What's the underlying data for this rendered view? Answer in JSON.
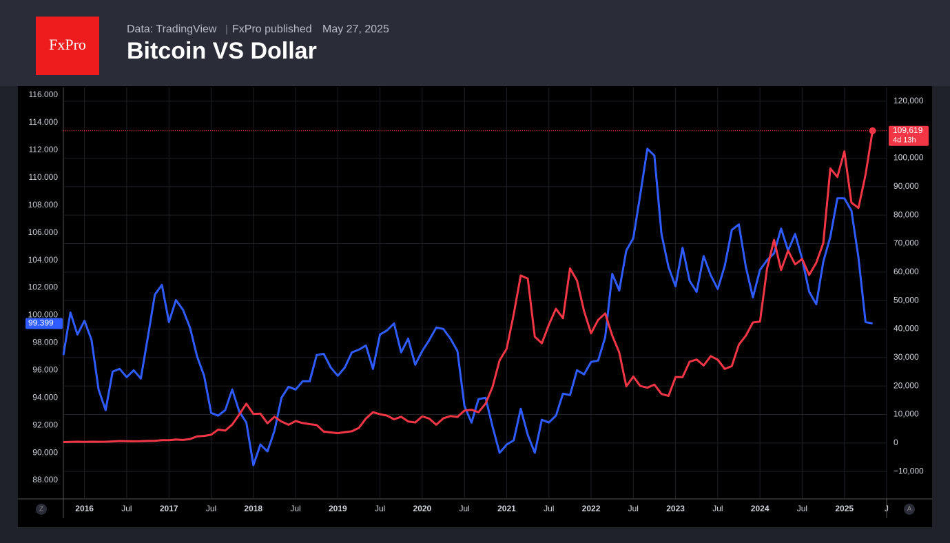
{
  "header": {
    "source": "Data: TradingView",
    "publisher": "FxPro published",
    "date": "May 27, 2025",
    "logo": "FxPro"
  },
  "axis_buttons": {
    "left": "Z",
    "right": "A"
  },
  "chart_data": {
    "type": "line",
    "title": "Bitcoin VS Dollar",
    "grid": true,
    "x": [
      "2015-10",
      "2015-11",
      "2015-12",
      "2016-01",
      "2016-02",
      "2016-03",
      "2016-04",
      "2016-05",
      "2016-06",
      "2016-07",
      "2016-08",
      "2016-09",
      "2016-10",
      "2016-11",
      "2016-12",
      "2017-01",
      "2017-02",
      "2017-03",
      "2017-04",
      "2017-05",
      "2017-06",
      "2017-07",
      "2017-08",
      "2017-09",
      "2017-10",
      "2017-11",
      "2017-12",
      "2018-01",
      "2018-02",
      "2018-03",
      "2018-04",
      "2018-05",
      "2018-06",
      "2018-07",
      "2018-08",
      "2018-09",
      "2018-10",
      "2018-11",
      "2018-12",
      "2019-01",
      "2019-02",
      "2019-03",
      "2019-04",
      "2019-05",
      "2019-06",
      "2019-07",
      "2019-08",
      "2019-09",
      "2019-10",
      "2019-11",
      "2019-12",
      "2020-01",
      "2020-02",
      "2020-03",
      "2020-04",
      "2020-05",
      "2020-06",
      "2020-07",
      "2020-08",
      "2020-09",
      "2020-10",
      "2020-11",
      "2020-12",
      "2021-01",
      "2021-02",
      "2021-03",
      "2021-04",
      "2021-05",
      "2021-06",
      "2021-07",
      "2021-08",
      "2021-09",
      "2021-10",
      "2021-11",
      "2021-12",
      "2022-01",
      "2022-02",
      "2022-03",
      "2022-04",
      "2022-05",
      "2022-06",
      "2022-07",
      "2022-08",
      "2022-09",
      "2022-10",
      "2022-11",
      "2022-12",
      "2023-01",
      "2023-02",
      "2023-03",
      "2023-04",
      "2023-05",
      "2023-06",
      "2023-07",
      "2023-08",
      "2023-09",
      "2023-10",
      "2023-11",
      "2023-12",
      "2024-01",
      "2024-02",
      "2024-03",
      "2024-04",
      "2024-05",
      "2024-06",
      "2024-07",
      "2024-08",
      "2024-09",
      "2024-10",
      "2024-11",
      "2024-12",
      "2025-01",
      "2025-02",
      "2025-03",
      "2025-04",
      "2025-05"
    ],
    "xlim": [
      "2015-10",
      "2025-07"
    ],
    "xticks": [
      {
        "value": "2016-01",
        "label": "2016"
      },
      {
        "value": "2016-07",
        "label": "Jul"
      },
      {
        "value": "2017-01",
        "label": "2017"
      },
      {
        "value": "2017-07",
        "label": "Jul"
      },
      {
        "value": "2018-01",
        "label": "2018"
      },
      {
        "value": "2018-07",
        "label": "Jul"
      },
      {
        "value": "2019-01",
        "label": "2019"
      },
      {
        "value": "2019-07",
        "label": "Jul"
      },
      {
        "value": "2020-01",
        "label": "2020"
      },
      {
        "value": "2020-07",
        "label": "Jul"
      },
      {
        "value": "2021-01",
        "label": "2021"
      },
      {
        "value": "2021-07",
        "label": "Jul"
      },
      {
        "value": "2022-01",
        "label": "2022"
      },
      {
        "value": "2022-07",
        "label": "Jul"
      },
      {
        "value": "2023-01",
        "label": "2023"
      },
      {
        "value": "2023-07",
        "label": "Jul"
      },
      {
        "value": "2024-01",
        "label": "2024"
      },
      {
        "value": "2024-07",
        "label": "Jul"
      },
      {
        "value": "2025-01",
        "label": "2025"
      },
      {
        "value": "2025-07",
        "label": "J"
      }
    ],
    "ylim": [
      86.7,
      116.55
    ],
    "yticks": [
      {
        "value": 88,
        "label": "88.000"
      },
      {
        "value": 90,
        "label": "90.000"
      },
      {
        "value": 92,
        "label": "92.000"
      },
      {
        "value": 94,
        "label": "94.000"
      },
      {
        "value": 96,
        "label": "96.000"
      },
      {
        "value": 98,
        "label": "98.000"
      },
      {
        "value": 100,
        "label": "100.000"
      },
      {
        "value": 102,
        "label": "102.000"
      },
      {
        "value": 104,
        "label": "104.000"
      },
      {
        "value": 106,
        "label": "106.000"
      },
      {
        "value": 108,
        "label": "108.000"
      },
      {
        "value": 110,
        "label": "110.000"
      },
      {
        "value": 112,
        "label": "112.000"
      },
      {
        "value": 114,
        "label": "114.000"
      },
      {
        "value": 116,
        "label": "116.000"
      }
    ],
    "y2lim": [
      -19400,
      124800
    ],
    "y2ticks": [
      {
        "value": -10000,
        "label": "−10,000"
      },
      0,
      {
        "value": 10000,
        "label": "10,000"
      },
      {
        "value": 20000,
        "label": "20,000"
      },
      {
        "value": 30000,
        "label": "30,000"
      },
      {
        "value": 40000,
        "label": "40,000"
      },
      {
        "value": 50000,
        "label": "50,000"
      },
      {
        "value": 60000,
        "label": "60,000"
      },
      {
        "value": 70000,
        "label": "70,000"
      },
      {
        "value": 80000,
        "label": "80,000"
      },
      {
        "value": 90000,
        "label": "90,000"
      },
      {
        "value": 100000,
        "label": "100,000"
      },
      {
        "value": 120000,
        "label": "120,000"
      }
    ],
    "series": [
      {
        "color": "#2f5cff",
        "axis": "y",
        "values": [
          97.1,
          100.2,
          98.6,
          99.6,
          98.2,
          94.6,
          93.1,
          95.9,
          96.1,
          95.5,
          96.0,
          95.4,
          98.4,
          101.5,
          102.2,
          99.5,
          101.1,
          100.4,
          99.1,
          97.0,
          95.6,
          92.9,
          92.7,
          93.1,
          94.6,
          93.0,
          92.2,
          89.1,
          90.6,
          90.1,
          91.6,
          94.0,
          94.8,
          94.6,
          95.2,
          95.2,
          97.1,
          97.2,
          96.2,
          95.6,
          96.2,
          97.3,
          97.5,
          97.8,
          96.1,
          98.6,
          98.9,
          99.4,
          97.3,
          98.3,
          96.4,
          97.4,
          98.2,
          99.1,
          99.0,
          98.3,
          97.4,
          93.4,
          92.2,
          93.9,
          94.0,
          91.9,
          90.0,
          90.6,
          90.9,
          93.2,
          91.3,
          90.0,
          92.4,
          92.2,
          92.7,
          94.3,
          94.2,
          96.0,
          95.7,
          96.6,
          96.7,
          98.4,
          103.0,
          101.8,
          104.7,
          105.6,
          108.8,
          112.1,
          111.6,
          105.9,
          103.5,
          102.1,
          104.9,
          102.5,
          101.7,
          104.3,
          102.9,
          101.9,
          103.6,
          106.2,
          106.6,
          103.5,
          101.3,
          103.3,
          104.0,
          104.5,
          106.3,
          104.7,
          105.9,
          104.1,
          101.7,
          100.8,
          103.9,
          105.7,
          108.5,
          108.5,
          107.6,
          104.2,
          99.5,
          99.399
        ]
      },
      {
        "color": "#f23645",
        "axis": "y2",
        "last_label": "109,619",
        "countdown": "4d 13h",
        "values": [
          310,
          380,
          430,
          370,
          440,
          415,
          450,
          530,
          670,
          620,
          575,
          610,
          700,
          740,
          960,
          970,
          1190,
          1080,
          1350,
          2300,
          2480,
          2880,
          4700,
          4340,
          6450,
          10000,
          13800,
          10200,
          10300,
          6900,
          9200,
          7500,
          6400,
          7700,
          7000,
          6600,
          6300,
          4000,
          3700,
          3450,
          3800,
          4100,
          5300,
          8600,
          10800,
          10100,
          9600,
          8300,
          9200,
          7550,
          7200,
          9350,
          8550,
          6400,
          8650,
          9450,
          9150,
          11350,
          11650,
          10800,
          13800,
          19700,
          29000,
          33100,
          45200,
          58800,
          57700,
          37300,
          35000,
          41500,
          47100,
          43800,
          61300,
          57000,
          46300,
          38500,
          43200,
          45500,
          37700,
          31800,
          19900,
          23300,
          20000,
          19400,
          20500,
          17200,
          16500,
          23100,
          23100,
          28500,
          29300,
          27200,
          30500,
          29200,
          26000,
          27000,
          34500,
          37700,
          42300,
          42600,
          61200,
          71300,
          60700,
          67500,
          62700,
          64600,
          59000,
          63300,
          70200,
          96400,
          93400,
          102400,
          84400,
          82500,
          94200,
          109619
        ]
      }
    ]
  }
}
